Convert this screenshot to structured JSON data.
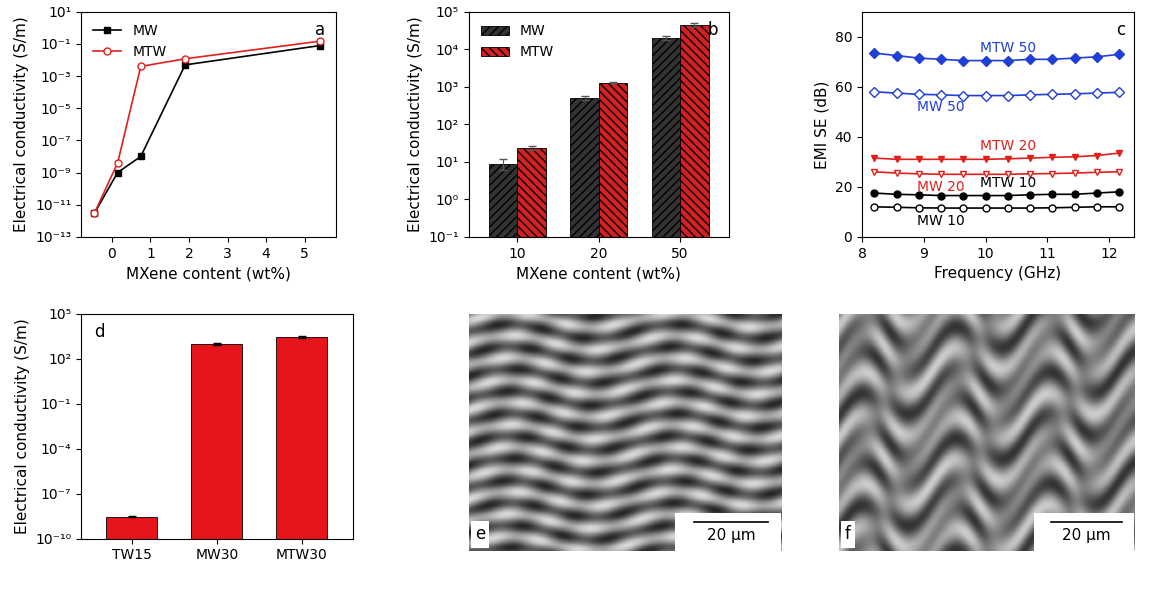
{
  "chart_data": [
    {
      "type": "line",
      "annotations": [
        "a"
      ],
      "x_label": "MXene content (wt%)",
      "y_label": "Electrical conductivity (S/m)",
      "log": "y",
      "legend": "upper left",
      "xlim": [
        -0.8,
        5.8
      ],
      "xticks": [
        0,
        1,
        2,
        3,
        4,
        5
      ],
      "ylim": [
        1e-13,
        10
      ],
      "yticks": [
        {
          "value": 1e-13,
          "label": "10⁻¹³"
        },
        {
          "value": 1e-11,
          "label": "10⁻¹¹"
        },
        {
          "value": 1e-09,
          "label": "10⁻⁹"
        },
        {
          "value": 1e-07,
          "label": "10⁻⁷"
        },
        {
          "value": 1e-05,
          "label": "10⁻⁵"
        },
        {
          "value": 0.001,
          "label": "10⁻³"
        },
        {
          "value": 0.1,
          "label": "10⁻¹"
        },
        {
          "value": 10,
          "label": "10¹"
        }
      ],
      "series": [
        {
          "name": "MW",
          "color": "#000000",
          "marker": "square",
          "x": [
            -0.45,
            0.15,
            0.75,
            1.9,
            5.4
          ],
          "values": [
            3e-12,
            1e-09,
            1e-08,
            0.005,
            0.08
          ]
        },
        {
          "name": "MTW",
          "color": "#e0201b",
          "marker": "open_circle",
          "x": [
            -0.45,
            0.15,
            0.75,
            1.9,
            5.4
          ],
          "values": [
            3e-12,
            4e-09,
            0.004,
            0.012,
            0.15
          ]
        }
      ]
    },
    {
      "type": "bar",
      "annotations": [
        "b"
      ],
      "x_label": "MXene content (wt%)",
      "y_label": "Electrical conductivity (S/m)",
      "log": "y",
      "legend": "upper left",
      "categories": [
        "10",
        "20",
        "50"
      ],
      "ylim": [
        0.1,
        100000
      ],
      "yticks": [
        {
          "value": 0.1,
          "label": "10⁻¹"
        },
        {
          "value": 1,
          "label": "10⁰"
        },
        {
          "value": 10,
          "label": "10¹"
        },
        {
          "value": 100,
          "label": "10²"
        },
        {
          "value": 1000,
          "label": "10³"
        },
        {
          "value": 10000,
          "label": "10⁴"
        },
        {
          "value": 100000,
          "label": "10⁵"
        }
      ],
      "series": [
        {
          "name": "MW",
          "color": "#333333",
          "values": [
            9,
            500,
            20000
          ],
          "errors": [
            3,
            60,
            2000
          ]
        },
        {
          "name": "MTW",
          "color": "#d42020",
          "values": [
            24,
            1300,
            45000
          ],
          "errors": [
            3,
            50,
            5000
          ]
        }
      ]
    },
    {
      "type": "line",
      "annotations": [
        "c"
      ],
      "x_label": "Frequency (GHz)",
      "y_label": "EMI SE (dB)",
      "xlim": [
        8,
        12.4
      ],
      "xticks": [
        8,
        9,
        10,
        11,
        12
      ],
      "ylim": [
        0,
        90
      ],
      "yticks": [
        0,
        20,
        40,
        60,
        80
      ],
      "x": [
        8.2,
        8.56,
        8.92,
        9.28,
        9.64,
        10.0,
        10.36,
        10.72,
        11.08,
        11.44,
        11.8,
        12.16
      ],
      "series": [
        {
          "name": "MTW 50",
          "color": "#1f3fd8",
          "marker": "diamond",
          "values": [
            73.5,
            72.5,
            71.5,
            71,
            70.5,
            70.5,
            70.5,
            71,
            71,
            71.5,
            72,
            73
          ]
        },
        {
          "name": "MW 50",
          "color": "#1f3fd8",
          "marker": "open_diamond",
          "values": [
            58,
            57.5,
            57,
            56.8,
            56.5,
            56.5,
            56.5,
            56.8,
            57,
            57.2,
            57.5,
            57.8
          ]
        },
        {
          "name": "MTW 20",
          "color": "#e0201b",
          "marker": "triangle_down",
          "values": [
            31.5,
            31,
            31,
            31,
            31,
            31,
            31.2,
            31.5,
            31.8,
            32,
            32.5,
            33.5
          ]
        },
        {
          "name": "MW 20",
          "color": "#e0201b",
          "marker": "open_triangle_down",
          "values": [
            26,
            25.5,
            25.2,
            25,
            25,
            25,
            25,
            25.2,
            25.3,
            25.5,
            25.8,
            26
          ]
        },
        {
          "name": "MTW 10",
          "color": "#000000",
          "marker": "circle",
          "values": [
            17.5,
            17,
            16.8,
            16.5,
            16.5,
            16.5,
            16.5,
            16.8,
            17,
            17,
            17.5,
            18
          ]
        },
        {
          "name": "MW 10",
          "color": "#000000",
          "marker": "open_circle",
          "values": [
            12,
            11.8,
            11.6,
            11.5,
            11.5,
            11.5,
            11.5,
            11.5,
            11.6,
            11.8,
            12,
            12
          ]
        }
      ]
    },
    {
      "type": "bar",
      "annotations": [
        "d"
      ],
      "y_label": "Electrical conductivity (S/m)",
      "log": "y",
      "categories": [
        "TW15",
        "MW30",
        "MTW30"
      ],
      "color": "#e8141b",
      "values": [
        3e-09,
        1000,
        3000
      ],
      "errors": [
        2e-10,
        150,
        400
      ],
      "ylim": [
        1e-10,
        100000
      ],
      "yticks": [
        {
          "value": 1e-10,
          "label": "10⁻¹⁰"
        },
        {
          "value": 1e-07,
          "label": "10⁻⁷"
        },
        {
          "value": 0.0001,
          "label": "10⁻⁴"
        },
        {
          "value": 0.1,
          "label": "10⁻¹"
        },
        {
          "value": 100,
          "label": "10²"
        },
        {
          "value": 100000,
          "label": "10⁵"
        }
      ]
    }
  ],
  "images": [
    {
      "annotations": [
        "e"
      ],
      "scale_bar": "20 μm"
    },
    {
      "annotations": [
        "f"
      ],
      "scale_bar": "20 μm"
    }
  ]
}
